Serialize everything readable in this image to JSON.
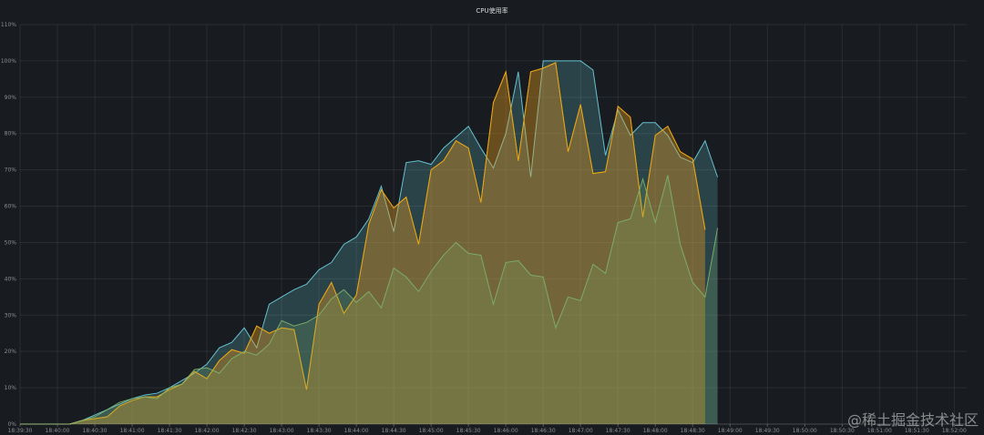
{
  "chart_data": {
    "type": "area",
    "title": "CPU使用率",
    "xlabel": "",
    "ylabel": "",
    "ylim": [
      0,
      110
    ],
    "y_ticks": [
      "0%",
      "10%",
      "20%",
      "30%",
      "40%",
      "50%",
      "60%",
      "70%",
      "80%",
      "90%",
      "100%",
      "110%"
    ],
    "y_tick_values": [
      0,
      10,
      20,
      30,
      40,
      50,
      60,
      70,
      80,
      90,
      100,
      110
    ],
    "x_ticks": [
      "18:39:30",
      "18:40:00",
      "18:40:30",
      "18:41:00",
      "18:41:30",
      "18:42:00",
      "18:42:30",
      "18:43:00",
      "18:43:30",
      "18:44:00",
      "18:44:30",
      "18:45:00",
      "18:45:30",
      "18:46:00",
      "18:46:30",
      "18:47:00",
      "18:47:30",
      "18:48:00",
      "18:48:30",
      "18:49:00",
      "18:49:30",
      "18:50:00",
      "18:50:30",
      "18:51:00",
      "18:51:30",
      "18:52:00"
    ],
    "x": [
      "18:39:30",
      "18:39:40",
      "18:39:50",
      "18:40:00",
      "18:40:10",
      "18:40:20",
      "18:40:30",
      "18:40:40",
      "18:40:50",
      "18:41:00",
      "18:41:10",
      "18:41:20",
      "18:41:30",
      "18:41:40",
      "18:41:50",
      "18:42:00",
      "18:42:10",
      "18:42:20",
      "18:42:30",
      "18:42:40",
      "18:42:50",
      "18:43:00",
      "18:43:10",
      "18:43:20",
      "18:43:30",
      "18:43:40",
      "18:43:50",
      "18:44:00",
      "18:44:10",
      "18:44:20",
      "18:44:30",
      "18:44:40",
      "18:44:50",
      "18:45:00",
      "18:45:10",
      "18:45:20",
      "18:45:30",
      "18:45:40",
      "18:45:50",
      "18:46:00",
      "18:46:10",
      "18:46:20",
      "18:46:30",
      "18:46:40",
      "18:46:50",
      "18:47:00",
      "18:47:10",
      "18:47:20",
      "18:47:30",
      "18:47:40",
      "18:47:50",
      "18:48:00",
      "18:48:10",
      "18:48:20",
      "18:48:30",
      "18:48:40",
      "18:48:50",
      "18:49:00",
      "18:49:10",
      "18:49:20",
      "18:49:30",
      "18:49:40",
      "18:49:50",
      "18:50:00",
      "18:50:10",
      "18:50:20",
      "18:50:30",
      "18:50:40",
      "18:50:50",
      "18:51:00",
      "18:51:10",
      "18:51:20",
      "18:51:30",
      "18:51:40",
      "18:51:50",
      "18:52:00",
      "18:52:10"
    ],
    "series": [
      {
        "color": "#6ed0e0",
        "fill": "#6ed0e0",
        "values": [
          0,
          0,
          0,
          0,
          0,
          1,
          2.5,
          4,
          5.5,
          7,
          8,
          8.5,
          10,
          12,
          14,
          16.5,
          21,
          22.5,
          26.5,
          21,
          33,
          35,
          37,
          38.5,
          42.5,
          44.5,
          49.5,
          51.5,
          56.5,
          65.5,
          53,
          72,
          72.5,
          71.5,
          76,
          79,
          82,
          76,
          70.5,
          80,
          97,
          68,
          100,
          100,
          100,
          100,
          97.5,
          74,
          86.5,
          79.5,
          83,
          83,
          79.5,
          73.5,
          72,
          78,
          68,
          null,
          null,
          null,
          null,
          null,
          null,
          null,
          null,
          null,
          null,
          null,
          null,
          null,
          null,
          null,
          null,
          null,
          null,
          null,
          null
        ]
      },
      {
        "color": "#ef843c",
        "fill": "#ef843c",
        "values": [
          0,
          0,
          0,
          0,
          0,
          1,
          1.5,
          2,
          5,
          6.5,
          7.5,
          7.5,
          9.5,
          11,
          14.5,
          12.5,
          17.5,
          20.5,
          19.5,
          27,
          25,
          26.5,
          26,
          9.5,
          33,
          39,
          30.5,
          35.5,
          55,
          64.5,
          59.5,
          62.5,
          49.5,
          70,
          72.5,
          78,
          76,
          61,
          88.5,
          97,
          72.5,
          97,
          98,
          99.5,
          75,
          88,
          69,
          69.5,
          87.5,
          84.5,
          57,
          79.5,
          82,
          75,
          73,
          53.5,
          null,
          null,
          null,
          null,
          null,
          null,
          null,
          null,
          null,
          null,
          null,
          null,
          null,
          null,
          null,
          null,
          null,
          null,
          null,
          null,
          null
        ]
      },
      {
        "color": "#e5ac0e",
        "fill": "#e5ac0e",
        "values": [
          0,
          0,
          0,
          0,
          0,
          1,
          1.5,
          2,
          5,
          6.5,
          7.5,
          7.5,
          9.5,
          11,
          14.5,
          12.5,
          17.5,
          20.5,
          19.5,
          27,
          25,
          26.5,
          26,
          9.5,
          33,
          39,
          30.5,
          35.5,
          55,
          64.5,
          59.5,
          62.5,
          49.5,
          70,
          72.5,
          78,
          76,
          61,
          88.5,
          97,
          72.5,
          97,
          98,
          99.5,
          75,
          88,
          69,
          69.5,
          87.5,
          84.5,
          57,
          79.5,
          82,
          75,
          73,
          53.5,
          null,
          null,
          null,
          null,
          null,
          null,
          null,
          null,
          null,
          null,
          null,
          null,
          null,
          null,
          null,
          null,
          null,
          null,
          null,
          null,
          null
        ]
      },
      {
        "color": "#7eb26d",
        "fill": "#7eb26d",
        "values": [
          0,
          0,
          0,
          0,
          0,
          1,
          2,
          4,
          6,
          7,
          7.5,
          7,
          10,
          11,
          15,
          15.5,
          14,
          18,
          20,
          19,
          22,
          28.5,
          27,
          28,
          30,
          34.5,
          37,
          33.5,
          36.5,
          32,
          43,
          40.5,
          36.5,
          42,
          46.5,
          50,
          47,
          46.5,
          33,
          44.5,
          45,
          41,
          40.5,
          26.5,
          35,
          34,
          44,
          41.5,
          55.5,
          56.5,
          67.5,
          55.5,
          68.5,
          49.5,
          39,
          35,
          54,
          null,
          null,
          null,
          null,
          null,
          null,
          null,
          null,
          null,
          null,
          null,
          null,
          null,
          null,
          null,
          null,
          null,
          null,
          null,
          null
        ]
      }
    ],
    "grid": true,
    "legend": "none"
  },
  "watermark": "@稀土掘金技术社区"
}
